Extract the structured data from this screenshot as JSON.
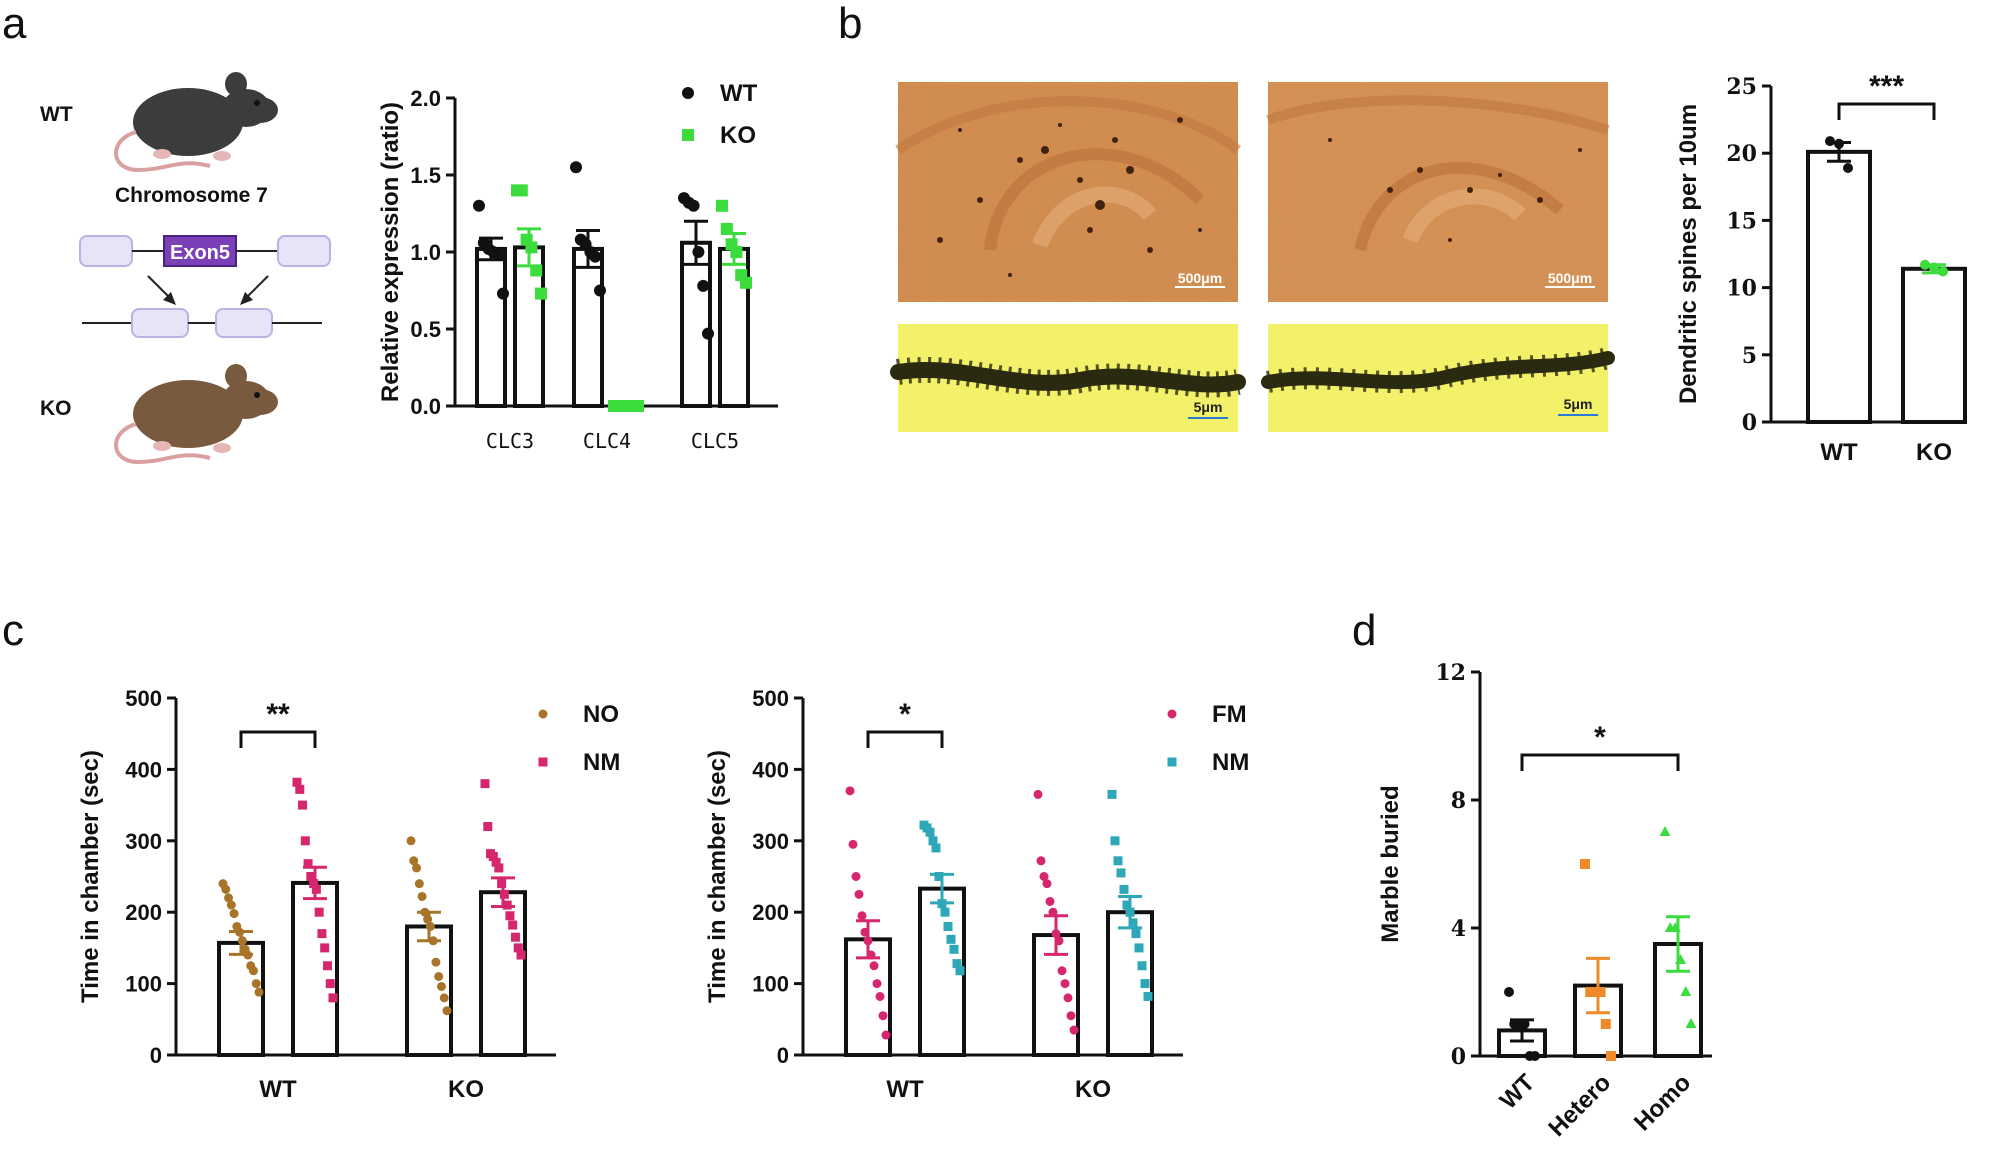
{
  "panels": {
    "a": "a",
    "b": "b",
    "c": "c",
    "d": "d"
  },
  "colors": {
    "wt_black": "#111111",
    "ko_green": "#3ddc3d",
    "no_brown": "#a8742a",
    "nm_pink": "#d6266e",
    "fm_pink": "#d6266e",
    "nm_teal": "#2ea8b8",
    "hetero_orange": "#ef8a2b",
    "homo_green": "#3ddc3d",
    "exon_purple": "#7b3fb8",
    "box_lavender": "#e6e4f7",
    "slice_orange": "#d28a4a",
    "dendrite_yellow": "#f3f06a"
  },
  "diagram": {
    "wt_label": "WT",
    "ko_label": "KO",
    "chromosome_label": "Chromosome 7",
    "exon_label": "Exon5",
    "wt_mouse_icon": "mouse-icon",
    "ko_mouse_icon": "mouse-icon"
  },
  "micrographs": {
    "scale_large": "500μm",
    "scale_small": "5μm"
  },
  "chart_data": [
    {
      "id": "a-expression",
      "type": "bar",
      "categories": [
        "CLC3",
        "CLC4",
        "CLC5"
      ],
      "ylabel": "Relative expression (ratio)",
      "ylim": [
        0,
        2.0
      ],
      "yticks": [
        "0.0",
        "0.5",
        "1.0",
        "1.5",
        "2.0"
      ],
      "legend_position": "top-right",
      "series": [
        {
          "name": "WT",
          "marker": "circle",
          "color": "#111111",
          "means": [
            1.02,
            1.02,
            1.06
          ],
          "sems": [
            0.07,
            0.12,
            0.14
          ],
          "points": [
            [
              1.3,
              1.06,
              1.02,
              1.0,
              0.98,
              0.73
            ],
            [
              1.55,
              1.08,
              1.05,
              1.0,
              0.97,
              0.75
            ],
            [
              1.35,
              1.32,
              1.3,
              1.0,
              0.78,
              0.47
            ]
          ]
        },
        {
          "name": "KO",
          "marker": "square",
          "color": "#3ddc3d",
          "means": [
            1.03,
            0.0,
            1.02
          ],
          "sems": [
            0.12,
            0.0,
            0.1
          ],
          "points": [
            [
              1.4,
              1.4,
              1.08,
              1.03,
              0.88,
              0.73
            ],
            [
              0.0,
              0.0,
              0.0,
              0.0,
              0.0,
              0.0
            ],
            [
              1.3,
              1.15,
              1.05,
              1.0,
              0.85,
              0.8
            ]
          ]
        }
      ]
    },
    {
      "id": "b-spines",
      "type": "bar",
      "categories": [
        "WT",
        "KO"
      ],
      "ylabel": "Dendritic spines per 10um",
      "ylim": [
        0,
        25
      ],
      "yticks": [
        "0",
        "5",
        "10",
        "15",
        "20",
        "25"
      ],
      "significance": "***",
      "series": [
        {
          "name": "WT",
          "color": "#111111",
          "mean": 20.1,
          "sem": 0.7,
          "points": [
            20.9,
            20.7,
            18.9
          ]
        },
        {
          "name": "KO",
          "color": "#3ddc3d",
          "mean": 11.4,
          "sem": 0.3,
          "points": [
            11.7,
            11.5,
            11.2
          ]
        }
      ]
    },
    {
      "id": "c-left",
      "type": "bar",
      "categories": [
        "WT",
        "KO"
      ],
      "ylabel": "Time in chamber (sec)",
      "ylim": [
        0,
        500
      ],
      "yticks": [
        "0",
        "100",
        "200",
        "300",
        "400",
        "500"
      ],
      "legend_position": "top-right",
      "significance": "**",
      "series": [
        {
          "name": "NO",
          "marker": "circle",
          "color": "#a8742a",
          "means": [
            157,
            180
          ],
          "sems": [
            16,
            20
          ],
          "points": [
            [
              240,
              232,
              220,
              210,
              198,
              180,
              172,
              160,
              148,
              140,
              125,
              118,
              100,
              88
            ],
            [
              300,
              272,
              262,
              240,
              222,
              200,
              190,
              180,
              160,
              130,
              110,
              96,
              80,
              62
            ]
          ]
        },
        {
          "name": "NM",
          "marker": "square",
          "color": "#d6266e",
          "means": [
            241,
            228
          ],
          "sems": [
            22,
            20
          ],
          "points": [
            [
              382,
              372,
              350,
              300,
              268,
              250,
              240,
              232,
              200,
              170,
              150,
              125,
              100,
              80
            ],
            [
              380,
              320,
              282,
              278,
              270,
              262,
              240,
              225,
              210,
              195,
              182,
              165,
              150,
              140
            ]
          ]
        }
      ]
    },
    {
      "id": "c-right",
      "type": "bar",
      "categories": [
        "WT",
        "KO"
      ],
      "ylabel": "Time in chamber (sec)",
      "ylim": [
        0,
        500
      ],
      "yticks": [
        "0",
        "100",
        "200",
        "300",
        "400",
        "500"
      ],
      "legend_position": "top-right",
      "significance": "*",
      "series": [
        {
          "name": "FM",
          "marker": "circle",
          "color": "#d6266e",
          "means": [
            162,
            168
          ],
          "sems": [
            26,
            27
          ],
          "points": [
            [
              370,
              295,
              250,
              225,
              195,
              172,
              160,
              140,
              125,
              100,
              82,
              55,
              28
            ],
            [
              365,
              272,
              250,
              240,
              215,
              200,
              170,
              160,
              118,
              100,
              80,
              55,
              35
            ]
          ]
        },
        {
          "name": "NM",
          "marker": "square",
          "color": "#2ea8b8",
          "means": [
            233,
            200
          ],
          "sems": [
            20,
            22
          ],
          "points": [
            [
              322,
              318,
              312,
              300,
              290,
              250,
              212,
              200,
              180,
              162,
              148,
              128,
              118
            ],
            [
              365,
              300,
              272,
              255,
              232,
              210,
              200,
              185,
              170,
              150,
              125,
              100,
              82
            ]
          ]
        }
      ]
    },
    {
      "id": "d-marble",
      "type": "bar",
      "categories": [
        "WT",
        "Hetero",
        "Homo"
      ],
      "ylabel": "Marble buried",
      "ylim": [
        0,
        12
      ],
      "yticks": [
        "0",
        "4",
        "8",
        "12"
      ],
      "significance": "*",
      "series": [
        {
          "name": "WT",
          "marker": "circle",
          "color": "#111111",
          "mean": 0.8,
          "sem": 0.33,
          "points": [
            2,
            1,
            1,
            1,
            0,
            0
          ]
        },
        {
          "name": "Hetero",
          "marker": "square",
          "color": "#ef8a2b",
          "mean": 2.2,
          "sem": 0.85,
          "points": [
            6,
            2,
            2,
            2,
            1,
            0
          ]
        },
        {
          "name": "Homo",
          "marker": "triangle",
          "color": "#3ddc3d",
          "mean": 3.5,
          "sem": 0.85,
          "points": [
            7,
            4,
            4,
            3,
            2,
            1
          ]
        }
      ]
    }
  ]
}
